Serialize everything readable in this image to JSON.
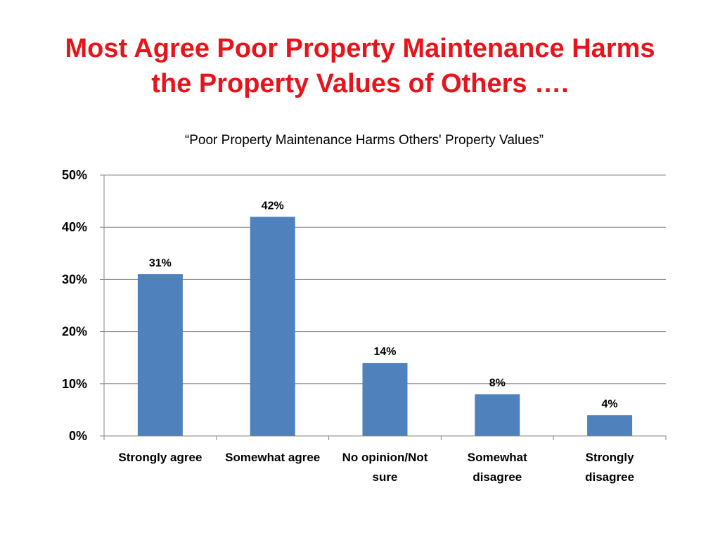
{
  "slide": {
    "title_line1": "Most Agree Poor Property Maintenance Harms",
    "title_line2": "the Property Values of Others …."
  },
  "chart_data": {
    "type": "bar",
    "title": "“Poor Property Maintenance Harms Others' Property Values”",
    "categories": [
      [
        "Strongly agree"
      ],
      [
        "Somewhat agree"
      ],
      [
        "No opinion/Not",
        "sure"
      ],
      [
        "Somewhat",
        "disagree"
      ],
      [
        "Strongly",
        "disagree"
      ]
    ],
    "values": [
      31,
      42,
      14,
      8,
      4
    ],
    "data_labels": [
      "31%",
      "42%",
      "14%",
      "8%",
      "4%"
    ],
    "ylim": [
      0,
      50
    ],
    "yticks": [
      0,
      10,
      20,
      30,
      40,
      50
    ],
    "ytick_labels": [
      "0%",
      "10%",
      "20%",
      "30%",
      "40%",
      "50%"
    ],
    "xlabel": "",
    "ylabel": "",
    "grid": true,
    "legend": "none",
    "bar_color": "#4f81bd",
    "grid_color": "#868686",
    "title_color": "#e8141b"
  }
}
